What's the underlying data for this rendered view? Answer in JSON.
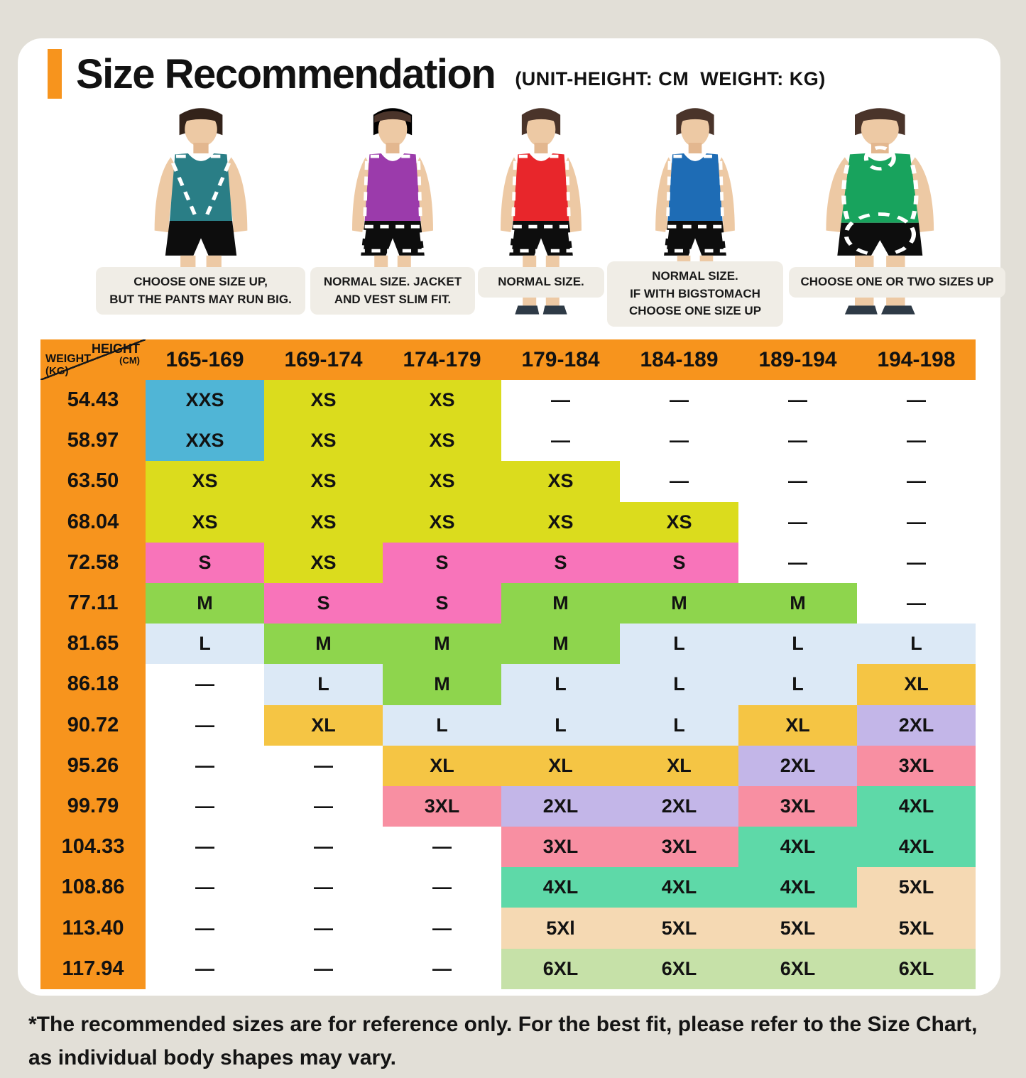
{
  "title": "Size Recommendation",
  "subtitle": "(UNIT-HEIGHT: CM  WEIGHT: KG)",
  "colors": {
    "accent": "#F7941D",
    "background": "#E2DFD7",
    "caption_bg": "#F0EDE6"
  },
  "figures": [
    {
      "build": "muscular",
      "tank_color": "#2A7E86",
      "caption": "CHOOSE ONE SIZE UP,\nBUT THE PANTS MAY RUN BIG."
    },
    {
      "build": "slim",
      "tank_color": "#9B3BAB",
      "caption": "NORMAL SIZE. JACKET\nAND VEST SLIM FIT."
    },
    {
      "build": "regular",
      "tank_color": "#E8262B",
      "caption": "NORMAL SIZE."
    },
    {
      "build": "regular-big-stomach",
      "tank_color": "#1E6CB5",
      "caption": "NORMAL SIZE.\nIF WITH BIGSTOMACH\nCHOOSE ONE SIZE UP"
    },
    {
      "build": "heavy",
      "tank_color": "#18A35D",
      "caption": "CHOOSE ONE OR TWO SIZES UP"
    }
  ],
  "chart_data": {
    "type": "table",
    "title": "Size Recommendation",
    "unit_note": "UNIT-HEIGHT: CM, WEIGHT: KG",
    "columns": [
      "165-169",
      "169-174",
      "174-179",
      "179-184",
      "184-189",
      "189-194",
      "194-198"
    ],
    "rows": [
      {
        "weight": "54.43",
        "sizes": [
          "XXS",
          "XS",
          "XS",
          "—",
          "—",
          "—",
          "—"
        ]
      },
      {
        "weight": "58.97",
        "sizes": [
          "XXS",
          "XS",
          "XS",
          "—",
          "—",
          "—",
          "—"
        ]
      },
      {
        "weight": "63.50",
        "sizes": [
          "XS",
          "XS",
          "XS",
          "XS",
          "—",
          "—",
          "—"
        ]
      },
      {
        "weight": "68.04",
        "sizes": [
          "XS",
          "XS",
          "XS",
          "XS",
          "XS",
          "—",
          "—"
        ]
      },
      {
        "weight": "72.58",
        "sizes": [
          "S",
          "XS",
          "S",
          "S",
          "S",
          "—",
          "—"
        ]
      },
      {
        "weight": "77.11",
        "sizes": [
          "M",
          "S",
          "S",
          "M",
          "M",
          "M",
          "—"
        ]
      },
      {
        "weight": "81.65",
        "sizes": [
          "L",
          "M",
          "M",
          "M",
          "L",
          "L",
          "L"
        ]
      },
      {
        "weight": "86.18",
        "sizes": [
          "—",
          "L",
          "M",
          "L",
          "L",
          "L",
          "XL"
        ]
      },
      {
        "weight": "90.72",
        "sizes": [
          "—",
          "XL",
          "L",
          "L",
          "L",
          "XL",
          "2XL"
        ]
      },
      {
        "weight": "95.26",
        "sizes": [
          "—",
          "—",
          "XL",
          "XL",
          "XL",
          "2XL",
          "3XL"
        ]
      },
      {
        "weight": "99.79",
        "sizes": [
          "—",
          "—",
          "3XL",
          "2XL",
          "2XL",
          "3XL",
          "4XL"
        ]
      },
      {
        "weight": "104.33",
        "sizes": [
          "—",
          "—",
          "—",
          "3XL",
          "3XL",
          "4XL",
          "4XL"
        ]
      },
      {
        "weight": "108.86",
        "sizes": [
          "—",
          "—",
          "—",
          "4XL",
          "4XL",
          "4XL",
          "5XL"
        ]
      },
      {
        "weight": "113.40",
        "sizes": [
          "—",
          "—",
          "—",
          "5Xl",
          "5XL",
          "5XL",
          "5XL"
        ]
      },
      {
        "weight": "117.94",
        "sizes": [
          "—",
          "—",
          "—",
          "6XL",
          "6XL",
          "6XL",
          "6XL"
        ]
      }
    ]
  },
  "table": {
    "corner": {
      "height_label": "HEIGHT",
      "height_unit": "(CM)",
      "weight_label": "WEIGHT",
      "weight_unit": "(KG)"
    },
    "palette": {
      "white": "#FFFFFF",
      "blue": "#50B5D6",
      "yellow": "#DBDC1D",
      "pink": "#F874BA",
      "green": "#8ED54D",
      "lightblue": "#DCE9F6",
      "gold": "#F5C544",
      "purple": "#C3B6E8",
      "salmon": "#F88FA2",
      "teal": "#5ED9A8",
      "tan": "#F5D9B3",
      "lightgreen": "#C6E1A8"
    },
    "cell_colors": [
      [
        "blue",
        "yellow",
        "yellow",
        "white",
        "white",
        "white",
        "white"
      ],
      [
        "blue",
        "yellow",
        "yellow",
        "white",
        "white",
        "white",
        "white"
      ],
      [
        "yellow",
        "yellow",
        "yellow",
        "yellow",
        "white",
        "white",
        "white"
      ],
      [
        "yellow",
        "yellow",
        "yellow",
        "yellow",
        "yellow",
        "white",
        "white"
      ],
      [
        "pink",
        "yellow",
        "pink",
        "pink",
        "pink",
        "white",
        "white"
      ],
      [
        "green",
        "pink",
        "pink",
        "green",
        "green",
        "green",
        "white"
      ],
      [
        "lightblue",
        "green",
        "green",
        "green",
        "lightblue",
        "lightblue",
        "lightblue"
      ],
      [
        "white",
        "lightblue",
        "green",
        "lightblue",
        "lightblue",
        "lightblue",
        "gold"
      ],
      [
        "white",
        "gold",
        "lightblue",
        "lightblue",
        "lightblue",
        "gold",
        "purple"
      ],
      [
        "white",
        "white",
        "gold",
        "gold",
        "gold",
        "purple",
        "salmon"
      ],
      [
        "white",
        "white",
        "salmon",
        "purple",
        "purple",
        "salmon",
        "teal"
      ],
      [
        "white",
        "white",
        "white",
        "salmon",
        "salmon",
        "teal",
        "teal"
      ],
      [
        "white",
        "white",
        "white",
        "teal",
        "teal",
        "teal",
        "tan"
      ],
      [
        "white",
        "white",
        "white",
        "tan",
        "tan",
        "tan",
        "tan"
      ],
      [
        "white",
        "white",
        "white",
        "lightgreen",
        "lightgreen",
        "lightgreen",
        "lightgreen"
      ]
    ]
  },
  "footnote": "*The recommended sizes are for reference only. For the best fit, please refer to the Size Chart,\nas individual body shapes may vary."
}
